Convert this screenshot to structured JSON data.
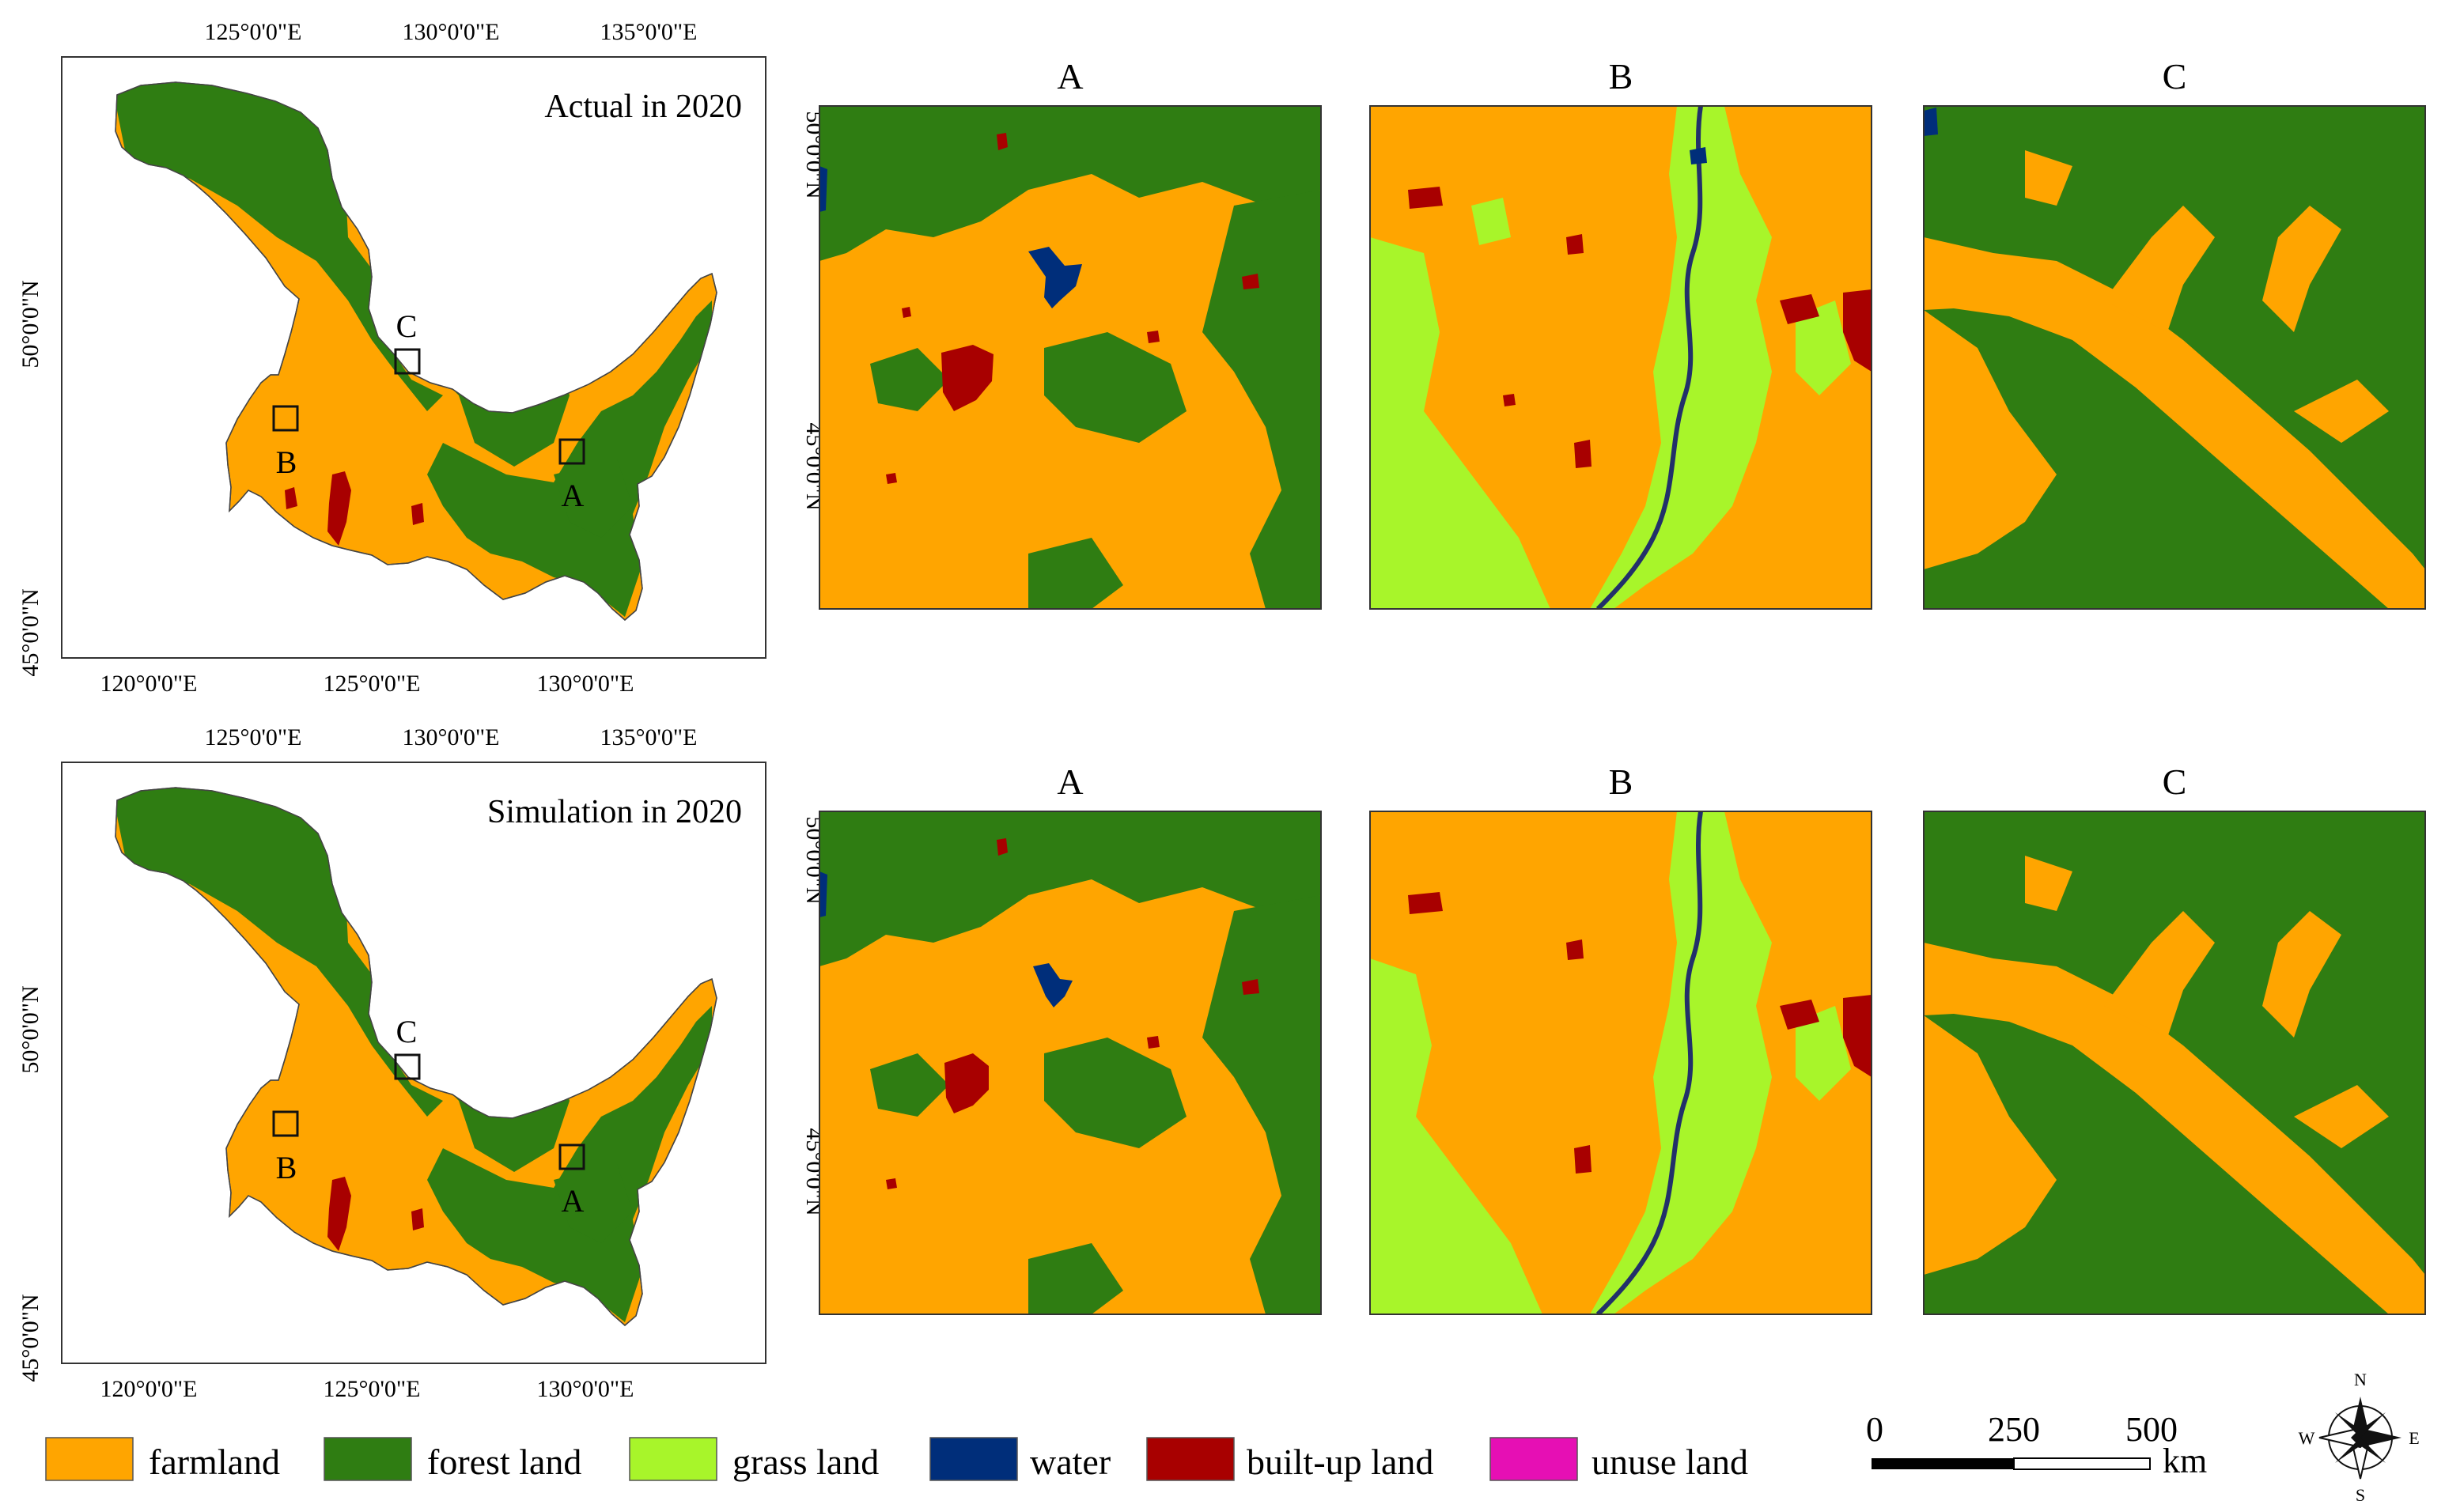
{
  "colors": {
    "farmland": "#FFA500",
    "forest_land": "#2F7D12",
    "grass_land": "#A8F52A",
    "water": "#002E7A",
    "built_up_land": "#A80000",
    "unuse_land": "#E60FB4",
    "frame": "#333333"
  },
  "top_row": {
    "main_title": "Actual in 2020",
    "top_ticks": [
      "125°0'0\"E",
      "130°0'0\"E",
      "135°0'0\"E"
    ],
    "bottom_ticks": [
      "120°0'0\"E",
      "125°0'0\"E",
      "130°0'0\"E"
    ],
    "left_ticks": [
      "50°0'0\"N",
      "45°0'0\"N"
    ],
    "zoom_left_ticks": [
      "50°0'0\"N",
      "45°0'0\"N"
    ],
    "box_labels": [
      "A",
      "B",
      "C"
    ],
    "panel_titles": [
      "A",
      "B",
      "C"
    ]
  },
  "bottom_row": {
    "main_title": "Simulation in 2020",
    "top_ticks": [
      "125°0'0\"E",
      "130°0'0\"E",
      "135°0'0\"E"
    ],
    "bottom_ticks": [
      "120°0'0\"E",
      "125°0'0\"E",
      "130°0'0\"E"
    ],
    "left_ticks": [
      "50°0'0\"N",
      "45°0'0\"N"
    ],
    "zoom_left_ticks": [
      "50°0'0\"N",
      "45°0'0\"N"
    ],
    "box_labels": [
      "A",
      "B",
      "C"
    ],
    "panel_titles": [
      "A",
      "B",
      "C"
    ]
  },
  "legend": [
    {
      "label": "farmland",
      "color_key": "farmland"
    },
    {
      "label": "forest land",
      "color_key": "forest_land"
    },
    {
      "label": "grass land",
      "color_key": "grass_land"
    },
    {
      "label": "water",
      "color_key": "water"
    },
    {
      "label": "built-up land",
      "color_key": "built_up_land"
    },
    {
      "label": "unuse land",
      "color_key": "unuse_land"
    }
  ],
  "scale_bar": {
    "ticks": [
      "0",
      "250",
      "500"
    ],
    "unit": "km"
  },
  "compass": {
    "n": "N",
    "s": "S",
    "e": "E",
    "w": "W"
  }
}
